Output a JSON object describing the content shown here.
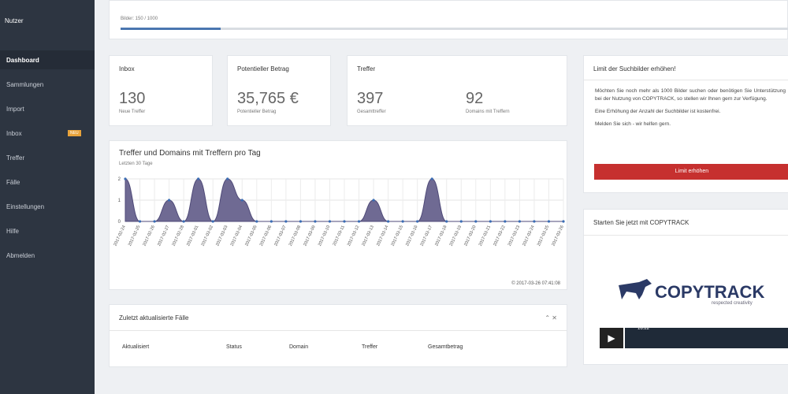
{
  "sidebar": {
    "user": "Nutzer",
    "items": [
      "Dashboard",
      "Sammlungen",
      "Import",
      "Inbox",
      "Treffer",
      "Fälle",
      "Einstellungen",
      "Hilfe",
      "Abmelden"
    ],
    "inbox_badge": "NEU"
  },
  "progress": {
    "label": "Bilder: 150 / 1000",
    "value": 150,
    "max": 1000
  },
  "cards": [
    {
      "title": "Inbox",
      "stats": [
        {
          "value": "130",
          "label": "Neue Treffer"
        }
      ]
    },
    {
      "title": "Potentieller Betrag",
      "stats": [
        {
          "value": "35,765 €",
          "label": "Potentieller Betrag"
        }
      ]
    },
    {
      "title": "Treffer",
      "stats": [
        {
          "value": "397",
          "label": "Gesamttreffer"
        },
        {
          "value": "92",
          "label": "Domains mit Treffern"
        }
      ]
    }
  ],
  "trend_chart": {
    "type": "area",
    "title": "Treffer und Domains mit Treffern pro Tag",
    "subtitle": "Letzten 30 Tage",
    "categories": [
      "2017-02-24",
      "2017-02-25",
      "2017-02-26",
      "2017-02-27",
      "2017-02-28",
      "2017-03-01",
      "2017-03-02",
      "2017-03-03",
      "2017-03-04",
      "2017-03-05",
      "2017-03-06",
      "2017-03-07",
      "2017-03-08",
      "2017-03-09",
      "2017-03-10",
      "2017-03-11",
      "2017-03-12",
      "2017-03-13",
      "2017-03-14",
      "2017-03-15",
      "2017-03-16",
      "2017-03-17",
      "2017-03-18",
      "2017-03-19",
      "2017-03-20",
      "2017-03-21",
      "2017-03-22",
      "2017-03-23",
      "2017-03-24",
      "2017-03-25",
      "2017-03-26"
    ],
    "values": [
      2,
      0,
      0,
      1,
      0,
      2,
      0,
      2,
      1,
      0,
      0,
      0,
      0,
      0,
      0,
      0,
      0,
      1,
      0,
      0,
      0,
      2,
      0,
      0,
      0,
      0,
      0,
      0,
      0,
      0,
      0
    ],
    "color": "#6f6a93",
    "ylim": [
      0,
      2
    ],
    "yticks": [
      0,
      1,
      2
    ],
    "grid": true,
    "footer": "© 2017-03-26 07:41:08"
  },
  "recent_cases": {
    "title": "Zuletzt aktualisierte Fälle",
    "columns": [
      "Aktualisiert",
      "Status",
      "Domain",
      "Treffer",
      "Gesamtbetrag"
    ]
  },
  "limit_box": {
    "title": "Limit der Suchbilder erhöhen!",
    "paragraphs": [
      "Möchten Sie noch mehr als 1000 Bilder suchen oder benötigen Sie Unterstützung bei der Nutzung von COPYTRACK, so stellen wir Ihnen gern zur Verfügung.",
      "Eine Erhöhung der Anzahl der Suchbilder ist kostenfrei.",
      "Melden Sie sich - wir helfen gern."
    ],
    "button": "Limit erhöhen"
  },
  "video_box": {
    "title": "Starten Sie jetzt mit COPYTRACK",
    "logo": "COPYTRACK",
    "tagline": "respected creativity",
    "time": "16:22"
  }
}
